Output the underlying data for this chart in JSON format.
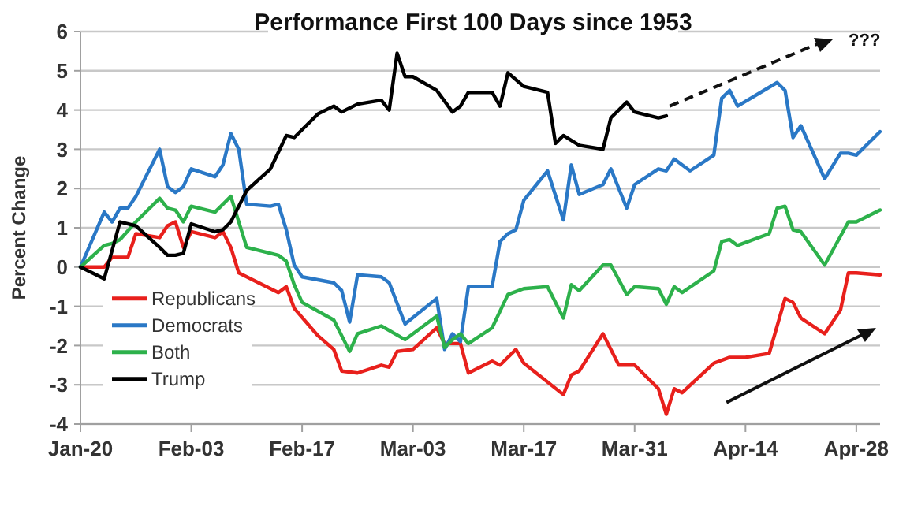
{
  "chart_data": {
    "type": "line",
    "title": "Performance First 100 Days since 1953",
    "ylabel": "Percent Change",
    "annotations": [
      "???"
    ],
    "xlim": [
      "--01-20",
      "--05-01"
    ],
    "xticks": [
      {
        "value": "--01-20",
        "label": "Jan-20"
      },
      {
        "value": "--02-03",
        "label": "Feb-03"
      },
      {
        "value": "--02-17",
        "label": "Feb-17"
      },
      {
        "value": "--03-03",
        "label": "Mar-03"
      },
      {
        "value": "--03-17",
        "label": "Mar-17"
      },
      {
        "value": "--03-31",
        "label": "Mar-31"
      },
      {
        "value": "--04-14",
        "label": "Apr-14"
      },
      {
        "value": "--04-28",
        "label": "Apr-28"
      }
    ],
    "ylim": [
      -4,
      6
    ],
    "yticks": [
      -4,
      -3,
      -2,
      -1,
      0,
      1,
      2,
      3,
      4,
      5,
      6
    ],
    "grid": "y",
    "legend": "left",
    "marker": "none",
    "line_style": "solid",
    "series": [
      {
        "name": "Republicans",
        "color": "#e8201c",
        "x": [
          "--01-20",
          "--01-23",
          "--01-24",
          "--01-26",
          "--01-27",
          "--01-30",
          "--01-31",
          "--02-01",
          "--02-02",
          "--02-03",
          "--02-06",
          "--02-07",
          "--02-08",
          "--02-09",
          "--02-14",
          "--02-15",
          "--02-16",
          "--02-19",
          "--02-21",
          "--02-22",
          "--02-24",
          "--02-27",
          "--02-28",
          "--03-01",
          "--03-03",
          "--03-06",
          "--03-07",
          "--03-09",
          "--03-10",
          "--03-13",
          "--03-14",
          "--03-16",
          "--03-17",
          "--03-22",
          "--03-23",
          "--03-24",
          "--03-27",
          "--03-29",
          "--03-31",
          "--04-03",
          "--04-04",
          "--04-05",
          "--04-06",
          "--04-10",
          "--04-12",
          "--04-14",
          "--04-17",
          "--04-19",
          "--04-20",
          "--04-21",
          "--04-24",
          "--04-26",
          "--04-27",
          "--04-28",
          "--05-01"
        ],
        "values": [
          0,
          0,
          0.25,
          0.25,
          0.85,
          0.75,
          1.05,
          1.15,
          0.5,
          0.9,
          0.75,
          0.9,
          0.5,
          -0.15,
          -0.65,
          -0.5,
          -1.05,
          -1.75,
          -2.1,
          -2.65,
          -2.7,
          -2.5,
          -2.55,
          -2.15,
          -2.1,
          -1.55,
          -1.95,
          -1.95,
          -2.7,
          -2.4,
          -2.5,
          -2.1,
          -2.45,
          -3.25,
          -2.75,
          -2.65,
          -1.7,
          -2.5,
          -2.5,
          -3.1,
          -3.75,
          -3.1,
          -3.2,
          -2.45,
          -2.3,
          -2.3,
          -2.2,
          -0.8,
          -0.9,
          -1.3,
          -1.7,
          -1.1,
          -0.15,
          -0.15,
          -0.2
        ]
      },
      {
        "name": "Democrats",
        "color": "#2a78c6",
        "x": [
          "--01-20",
          "--01-23",
          "--01-24",
          "--01-25",
          "--01-26",
          "--01-27",
          "--01-30",
          "--01-31",
          "--02-01",
          "--02-02",
          "--02-03",
          "--02-06",
          "--02-07",
          "--02-08",
          "--02-09",
          "--02-10",
          "--02-13",
          "--02-14",
          "--02-15",
          "--02-16",
          "--02-17",
          "--02-21",
          "--02-22",
          "--02-23",
          "--02-24",
          "--02-27",
          "--02-28",
          "--03-02",
          "--03-06",
          "--03-07",
          "--03-08",
          "--03-09",
          "--03-10",
          "--03-13",
          "--03-14",
          "--03-15",
          "--03-16",
          "--03-17",
          "--03-20",
          "--03-22",
          "--03-23",
          "--03-24",
          "--03-27",
          "--03-28",
          "--03-30",
          "--03-31",
          "--04-03",
          "--04-04",
          "--04-05",
          "--04-07",
          "--04-10",
          "--04-11",
          "--04-12",
          "--04-13",
          "--04-18",
          "--04-19",
          "--04-20",
          "--04-21",
          "--04-24",
          "--04-26",
          "--04-27",
          "--04-28",
          "--05-01"
        ],
        "values": [
          0,
          1.4,
          1.15,
          1.5,
          1.5,
          1.8,
          3.0,
          2.05,
          1.9,
          2.05,
          2.5,
          2.3,
          2.6,
          3.4,
          3.0,
          1.6,
          1.55,
          1.6,
          0.95,
          0.05,
          -0.25,
          -0.4,
          -0.6,
          -1.4,
          -0.2,
          -0.25,
          -0.4,
          -1.45,
          -0.8,
          -2.1,
          -1.7,
          -1.9,
          -0.5,
          -0.5,
          0.65,
          0.85,
          0.95,
          1.7,
          2.45,
          1.2,
          2.6,
          1.85,
          2.1,
          2.5,
          1.5,
          2.1,
          2.5,
          2.45,
          2.75,
          2.45,
          2.85,
          4.3,
          4.5,
          4.1,
          4.7,
          4.5,
          3.3,
          3.6,
          2.25,
          2.9,
          2.9,
          2.85,
          3.45
        ]
      },
      {
        "name": "Both",
        "color": "#2db14b",
        "x": [
          "--01-20",
          "--01-23",
          "--01-24",
          "--01-25",
          "--01-27",
          "--01-30",
          "--01-31",
          "--02-01",
          "--02-02",
          "--02-03",
          "--02-06",
          "--02-08",
          "--02-10",
          "--02-14",
          "--02-15",
          "--02-16",
          "--02-17",
          "--02-21",
          "--02-23",
          "--02-24",
          "--02-27",
          "--03-02",
          "--03-06",
          "--03-07",
          "--03-08",
          "--03-09",
          "--03-10",
          "--03-13",
          "--03-15",
          "--03-17",
          "--03-20",
          "--03-22",
          "--03-23",
          "--03-24",
          "--03-27",
          "--03-28",
          "--03-30",
          "--03-31",
          "--04-03",
          "--04-04",
          "--04-05",
          "--04-06",
          "--04-10",
          "--04-11",
          "--04-12",
          "--04-13",
          "--04-17",
          "--04-18",
          "--04-19",
          "--04-20",
          "--04-21",
          "--04-24",
          "--04-27",
          "--04-28",
          "--05-01"
        ],
        "values": [
          0,
          0.55,
          0.6,
          0.7,
          1.15,
          1.75,
          1.5,
          1.45,
          1.15,
          1.55,
          1.4,
          1.8,
          0.5,
          0.3,
          0.15,
          -0.45,
          -0.9,
          -1.35,
          -2.15,
          -1.7,
          -1.5,
          -1.85,
          -1.25,
          -2.05,
          -1.85,
          -1.7,
          -1.95,
          -1.55,
          -0.7,
          -0.55,
          -0.5,
          -1.3,
          -0.45,
          -0.6,
          0.05,
          0.05,
          -0.7,
          -0.5,
          -0.55,
          -0.95,
          -0.5,
          -0.65,
          -0.1,
          0.65,
          0.7,
          0.55,
          0.85,
          1.5,
          1.55,
          0.95,
          0.9,
          0.05,
          1.15,
          1.15,
          1.45
        ]
      },
      {
        "name": "Trump",
        "color": "#000000",
        "x": [
          "--01-20",
          "--01-23",
          "--01-25",
          "--01-27",
          "--01-30",
          "--01-31",
          "--02-01",
          "--02-02",
          "--02-03",
          "--02-06",
          "--02-07",
          "--02-08",
          "--02-10",
          "--02-13",
          "--02-15",
          "--02-16",
          "--02-19",
          "--02-21",
          "--02-22",
          "--02-24",
          "--02-27",
          "--02-28",
          "--03-01",
          "--03-02",
          "--03-03",
          "--03-06",
          "--03-08",
          "--03-09",
          "--03-10",
          "--03-13",
          "--03-14",
          "--03-15",
          "--03-17",
          "--03-20",
          "--03-21",
          "--03-22",
          "--03-24",
          "--03-27",
          "--03-28",
          "--03-30",
          "--03-31",
          "--04-03",
          "--04-04"
        ],
        "values": [
          0,
          -0.3,
          1.15,
          1.05,
          0.5,
          0.3,
          0.3,
          0.35,
          1.1,
          0.9,
          0.95,
          1.15,
          1.95,
          2.5,
          3.35,
          3.3,
          3.9,
          4.1,
          3.95,
          4.15,
          4.25,
          4.0,
          5.45,
          4.85,
          4.85,
          4.5,
          3.95,
          4.1,
          4.45,
          4.45,
          4.1,
          4.95,
          4.6,
          4.45,
          3.15,
          3.35,
          3.1,
          3.0,
          3.8,
          4.2,
          3.95,
          3.8,
          3.85
        ]
      }
    ]
  }
}
